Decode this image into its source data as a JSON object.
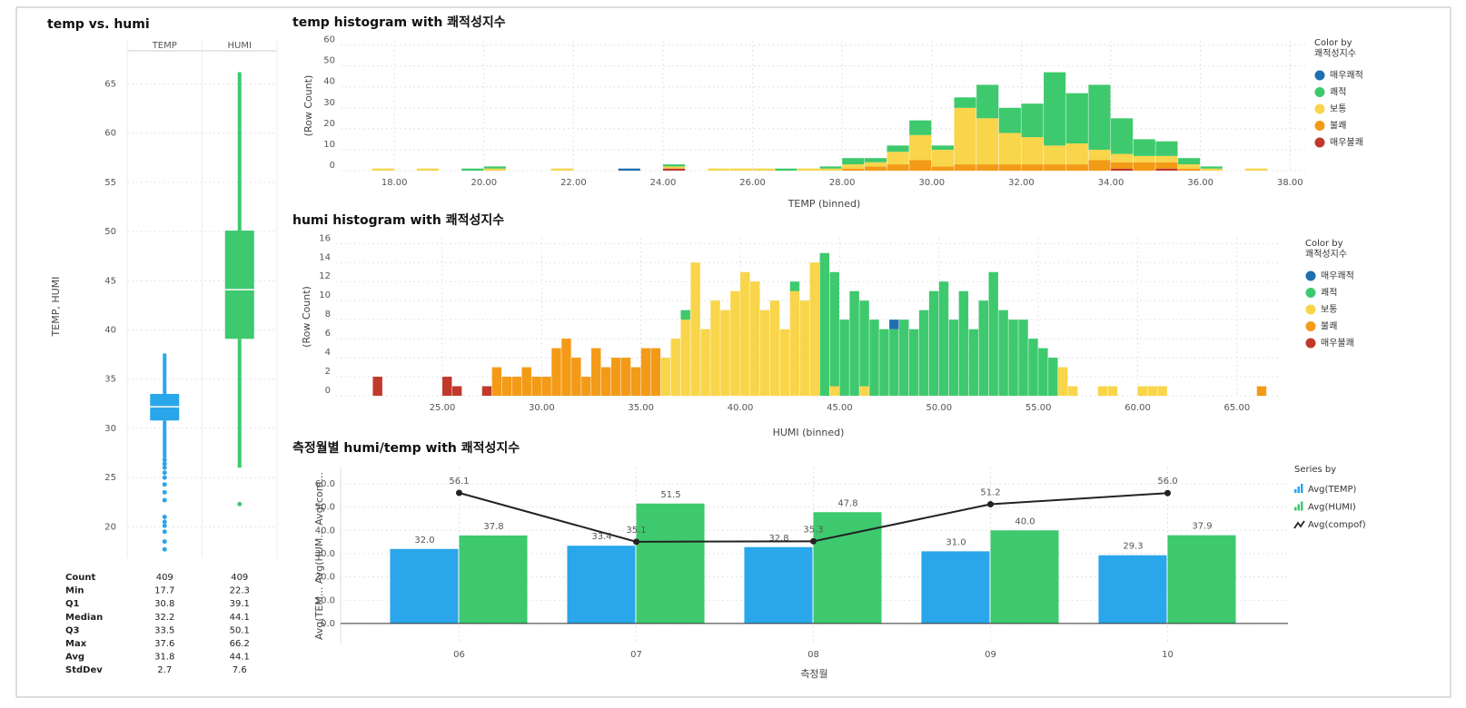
{
  "chart_data": [
    {
      "type": "box",
      "title": "temp vs. humi",
      "y_label": "TEMP, HUMI",
      "ylim": [
        16.8,
        68
      ],
      "yticks": [
        20,
        25,
        30,
        35,
        40,
        45,
        50,
        55,
        60,
        65
      ],
      "grid": true,
      "stat_labels": [
        "Count",
        "Min",
        "Q1",
        "Median",
        "Q3",
        "Max",
        "Avg",
        "StdDev"
      ],
      "series": [
        {
          "name": "TEMP",
          "color": "#2aa6ea",
          "stats": [
            409,
            17.7,
            30.8,
            32.2,
            33.5,
            37.6,
            31.8,
            2.7
          ],
          "whisker_low": 27.0,
          "outliers": [
            26.8,
            26.4,
            26.0,
            25.5,
            25.0,
            24.3,
            23.5,
            22.7,
            21.0,
            20.5,
            20.1,
            19.5,
            18.5,
            17.7
          ]
        },
        {
          "name": "HUMI",
          "color": "#3ec96e",
          "stats": [
            409,
            22.3,
            39.1,
            44.1,
            50.1,
            66.2,
            44.1,
            7.6
          ],
          "whisker_low": 26.0,
          "outliers": [
            22.3
          ]
        }
      ]
    },
    {
      "type": "histogram",
      "title": "temp histogram with 쾌적성지수",
      "x_label": "TEMP (binned)",
      "y_label": "(Row Count)",
      "legend_title": "Color by",
      "legend_subtitle": "쾌적성지수",
      "xlim": [
        16.8,
        38.4
      ],
      "xticks": [
        {
          "value": 18,
          "label": "18.00"
        },
        {
          "value": 20,
          "label": "20.00"
        },
        {
          "value": 22,
          "label": "22.00"
        },
        {
          "value": 24,
          "label": "24.00"
        },
        {
          "value": 26,
          "label": "26.00"
        },
        {
          "value": 28,
          "label": "28.00"
        },
        {
          "value": 30,
          "label": "30.00"
        },
        {
          "value": 32,
          "label": "32.00"
        },
        {
          "value": 34,
          "label": "34.00"
        },
        {
          "value": 36,
          "label": "36.00"
        },
        {
          "value": 38,
          "label": "38.00"
        }
      ],
      "ylim": [
        0,
        62
      ],
      "yticks": [
        0,
        10,
        20,
        30,
        40,
        50,
        60
      ],
      "grid": true,
      "bins": [
        17.5,
        18,
        18.5,
        19,
        19.5,
        20,
        20.5,
        21,
        21.5,
        22,
        22.5,
        23,
        23.5,
        24,
        24.5,
        25,
        25.5,
        26,
        26.5,
        27,
        27.5,
        28,
        28.5,
        29,
        29.5,
        30,
        30.5,
        31,
        31.5,
        32,
        32.5,
        33,
        33.5,
        34,
        34.5,
        35,
        35.5,
        36,
        36.5,
        37,
        37.5,
        38
      ],
      "series": [
        {
          "name": "매우쾌적",
          "color": "#1f6fb0",
          "values": [
            0,
            0,
            0,
            0,
            0,
            0,
            0,
            0,
            0,
            0,
            0,
            1,
            0,
            0,
            0,
            0,
            0,
            0,
            0,
            0,
            0,
            0,
            0,
            0,
            0,
            0,
            0,
            0,
            0,
            0,
            0,
            0,
            0,
            0,
            0,
            0,
            0,
            0,
            0,
            0,
            0
          ]
        },
        {
          "name": "쾌적",
          "color": "#3ec96e",
          "values": [
            0,
            0,
            0,
            0,
            1,
            1,
            0,
            0,
            0,
            0,
            0,
            0,
            0,
            1,
            0,
            0,
            0,
            0,
            1,
            0,
            1,
            3,
            2,
            3,
            7,
            2,
            5,
            16,
            12,
            16,
            35,
            24,
            31,
            17,
            8,
            7,
            3,
            1,
            0,
            0,
            0
          ]
        },
        {
          "name": "보통",
          "color": "#f8d54a",
          "values": [
            1,
            0,
            1,
            0,
            0,
            1,
            0,
            0,
            1,
            0,
            0,
            0,
            0,
            1,
            0,
            1,
            1,
            1,
            0,
            1,
            1,
            2,
            2,
            6,
            12,
            8,
            27,
            22,
            15,
            13,
            9,
            10,
            5,
            4,
            3,
            3,
            2,
            1,
            0,
            1,
            0
          ]
        },
        {
          "name": "불쾌",
          "color": "#f39a17",
          "values": [
            0,
            0,
            0,
            0,
            0,
            0,
            0,
            0,
            0,
            0,
            0,
            0,
            0,
            0,
            0,
            0,
            0,
            0,
            0,
            0,
            0,
            1,
            2,
            3,
            5,
            2,
            3,
            3,
            3,
            3,
            3,
            3,
            5,
            3,
            4,
            3,
            1,
            0,
            0,
            0,
            0
          ]
        },
        {
          "name": "매우불쾌",
          "color": "#c0392b",
          "values": [
            0,
            0,
            0,
            0,
            0,
            0,
            0,
            0,
            0,
            0,
            0,
            0,
            0,
            1,
            0,
            0,
            0,
            0,
            0,
            0,
            0,
            0,
            0,
            0,
            0,
            0,
            0,
            0,
            0,
            0,
            0,
            0,
            0,
            1,
            0,
            1,
            0,
            0,
            0,
            0,
            0
          ]
        }
      ]
    },
    {
      "type": "histogram",
      "title": "humi histogram with 쾌적성지수",
      "x_label": "HUMI (binned)",
      "y_label": "(Row Count)",
      "legend_title": "Color by",
      "legend_subtitle": "쾌적성지수",
      "xlim": [
        19.65,
        67.2
      ],
      "xticks": [
        {
          "value": 25,
          "label": "25.00"
        },
        {
          "value": 30,
          "label": "30.00"
        },
        {
          "value": 35,
          "label": "35.00"
        },
        {
          "value": 40,
          "label": "40.00"
        },
        {
          "value": 45,
          "label": "45.00"
        },
        {
          "value": 50,
          "label": "50.00"
        },
        {
          "value": 55,
          "label": "55.00"
        },
        {
          "value": 60,
          "label": "60.00"
        },
        {
          "value": 65,
          "label": "65.00"
        }
      ],
      "ylim": [
        0,
        16.6
      ],
      "yticks": [
        0,
        2,
        4,
        6,
        8,
        10,
        12,
        14,
        16
      ],
      "grid": true,
      "bins": [
        21.5,
        22,
        22.5,
        23,
        23.5,
        24,
        24.5,
        25,
        25.5,
        26,
        26.5,
        27,
        27.5,
        28,
        28.5,
        29,
        29.5,
        30,
        30.5,
        31,
        31.5,
        32,
        32.5,
        33,
        33.5,
        34,
        34.5,
        35,
        35.5,
        36,
        36.5,
        37,
        37.5,
        38,
        38.5,
        39,
        39.5,
        40,
        40.5,
        41,
        41.5,
        42,
        42.5,
        43,
        43.5,
        44,
        44.5,
        45,
        45.5,
        46,
        46.5,
        47,
        47.5,
        48,
        48.5,
        49,
        49.5,
        50,
        50.5,
        51,
        51.5,
        52,
        52.5,
        53,
        53.5,
        54,
        54.5,
        55,
        55.5,
        56,
        56.5,
        57,
        57.5,
        58,
        58.5,
        59,
        59.5,
        60,
        60.5,
        61,
        61.5,
        62,
        62.5,
        63,
        63.5,
        64,
        64.5,
        65,
        65.5,
        66,
        66.5,
        67
      ],
      "series": [
        {
          "name": "매우쾌적",
          "color": "#1f6fb0",
          "values": [
            0,
            0,
            0,
            0,
            0,
            0,
            0,
            0,
            0,
            0,
            0,
            0,
            0,
            0,
            0,
            0,
            0,
            0,
            0,
            0,
            0,
            0,
            0,
            0,
            0,
            0,
            0,
            0,
            0,
            0,
            0,
            0,
            0,
            0,
            0,
            0,
            0,
            0,
            0,
            0,
            0,
            0,
            0,
            0,
            0,
            0,
            0,
            0,
            0,
            0,
            0,
            0,
            1,
            0,
            0,
            0,
            0,
            0,
            0,
            0,
            0,
            0,
            0,
            0,
            0,
            0,
            0,
            0,
            0,
            0,
            0,
            0,
            0,
            0,
            0,
            0,
            0,
            0,
            0,
            0,
            0,
            0,
            0,
            0,
            0,
            0,
            0,
            0,
            0,
            0,
            0
          ]
        },
        {
          "name": "쾌적",
          "color": "#3ec96e",
          "values": [
            0,
            0,
            0,
            0,
            0,
            0,
            0,
            0,
            0,
            0,
            0,
            0,
            0,
            0,
            0,
            0,
            0,
            0,
            0,
            0,
            0,
            0,
            0,
            0,
            0,
            0,
            0,
            0,
            0,
            0,
            0,
            1,
            0,
            0,
            0,
            0,
            0,
            0,
            0,
            0,
            0,
            0,
            1,
            0,
            0,
            15,
            12,
            8,
            11,
            9,
            8,
            7,
            7,
            8,
            7,
            9,
            11,
            12,
            8,
            11,
            7,
            10,
            13,
            9,
            8,
            8,
            6,
            5,
            4,
            0,
            0,
            0,
            0,
            0,
            0,
            0,
            0,
            0,
            0,
            0,
            0,
            0,
            0,
            0,
            0,
            0,
            0,
            0,
            0,
            0,
            0
          ]
        },
        {
          "name": "보통",
          "color": "#f8d54a",
          "values": [
            0,
            0,
            0,
            0,
            0,
            0,
            0,
            0,
            0,
            0,
            0,
            0,
            0,
            0,
            0,
            0,
            0,
            0,
            0,
            0,
            0,
            0,
            0,
            0,
            0,
            0,
            0,
            0,
            0,
            4,
            6,
            8,
            14,
            7,
            10,
            9,
            11,
            13,
            12,
            9,
            10,
            7,
            11,
            10,
            14,
            0,
            1,
            0,
            0,
            1,
            0,
            0,
            0,
            0,
            0,
            0,
            0,
            0,
            0,
            0,
            0,
            0,
            0,
            0,
            0,
            0,
            0,
            0,
            0,
            3,
            1,
            0,
            0,
            1,
            1,
            0,
            0,
            1,
            1,
            1,
            0,
            0,
            0,
            0,
            0,
            0,
            0,
            0,
            0,
            0,
            0
          ]
        },
        {
          "name": "불쾌",
          "color": "#f39a17",
          "values": [
            0,
            0,
            0,
            0,
            0,
            0,
            0,
            0,
            0,
            0,
            0,
            0,
            3,
            2,
            2,
            3,
            2,
            2,
            5,
            6,
            4,
            2,
            5,
            3,
            4,
            4,
            3,
            5,
            5,
            0,
            0,
            0,
            0,
            0,
            0,
            0,
            0,
            0,
            0,
            0,
            0,
            0,
            0,
            0,
            0,
            0,
            0,
            0,
            0,
            0,
            0,
            0,
            0,
            0,
            0,
            0,
            0,
            0,
            0,
            0,
            0,
            0,
            0,
            0,
            0,
            0,
            0,
            0,
            0,
            0,
            0,
            0,
            0,
            0,
            0,
            0,
            0,
            0,
            0,
            0,
            0,
            0,
            0,
            0,
            0,
            0,
            0,
            0,
            0,
            1,
            0
          ]
        },
        {
          "name": "매우불쾌",
          "color": "#c0392b",
          "values": [
            2,
            0,
            0,
            0,
            0,
            0,
            0,
            2,
            1,
            0,
            0,
            1,
            0,
            0,
            0,
            0,
            0,
            0,
            0,
            0,
            0,
            0,
            0,
            0,
            0,
            0,
            0,
            0,
            0,
            0,
            0,
            0,
            0,
            0,
            0,
            0,
            0,
            0,
            0,
            0,
            0,
            0,
            0,
            0,
            0,
            0,
            0,
            0,
            0,
            0,
            0,
            0,
            0,
            0,
            0,
            0,
            0,
            0,
            0,
            0,
            0,
            0,
            0,
            0,
            0,
            0,
            0,
            0,
            0,
            0,
            0,
            0,
            0,
            0,
            0,
            0,
            0,
            0,
            0,
            0,
            0,
            0,
            0,
            0,
            0,
            0,
            0,
            0,
            0,
            0,
            0
          ]
        }
      ]
    },
    {
      "type": "combo",
      "title": "측정월별 humi/temp with 쾌적성지수",
      "x_label": "측정월",
      "y_label": "Avg(TEM... Avg(HUM... Avg(com...",
      "legend_title": "Series by",
      "categories": [
        "06",
        "07",
        "08",
        "09",
        "10"
      ],
      "ylim": [
        -9,
        67
      ],
      "yticks": [
        {
          "value": 0,
          "label": "0.0"
        },
        {
          "value": 10,
          "label": "10.0"
        },
        {
          "value": 20,
          "label": "20.0"
        },
        {
          "value": 30,
          "label": "30.0"
        },
        {
          "value": 40,
          "label": "40.0"
        },
        {
          "value": 50,
          "label": "50.0"
        },
        {
          "value": 60,
          "label": "60.0"
        }
      ],
      "grid": true,
      "series": [
        {
          "name": "Avg(TEMP)",
          "kind": "bar",
          "color": "#2aa6ea",
          "values": [
            32.0,
            33.4,
            32.8,
            31.0,
            29.3
          ],
          "value_labels": [
            "32.0",
            "33.4",
            "32.8",
            "31.0",
            "29.3"
          ]
        },
        {
          "name": "Avg(HUMI)",
          "kind": "bar",
          "color": "#3ec96e",
          "values": [
            37.8,
            51.5,
            47.8,
            40.0,
            37.9
          ],
          "value_labels": [
            "37.8",
            "51.5",
            "47.8",
            "40.0",
            "37.9"
          ]
        },
        {
          "name": "Avg(compof)",
          "kind": "line",
          "color": "#222222",
          "values": [
            56.1,
            35.1,
            35.3,
            51.2,
            56.0
          ],
          "value_labels": [
            "56.1",
            "35.1",
            "35.3",
            "51.2",
            "56.0"
          ]
        }
      ]
    }
  ]
}
